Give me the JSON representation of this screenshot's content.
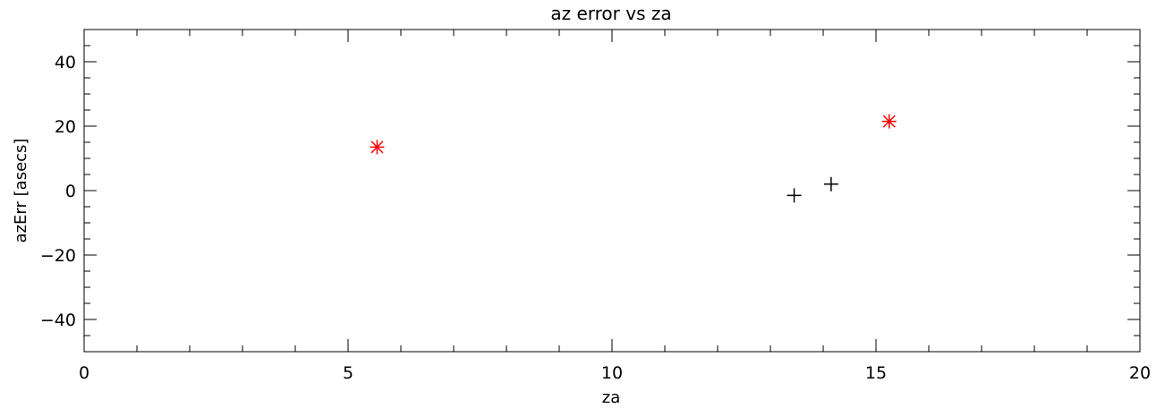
{
  "chart_data": {
    "type": "scatter",
    "title": "az error vs za",
    "xlabel": "za",
    "ylabel": "azErr [asecs]",
    "xlim": [
      0,
      20
    ],
    "ylim": [
      -50,
      50
    ],
    "x_ticks": [
      0,
      5,
      10,
      15,
      20
    ],
    "x_tick_labels": [
      "0",
      "5",
      "10",
      "15",
      "20"
    ],
    "x_minor_step": 1,
    "y_ticks": [
      -40,
      -20,
      0,
      20,
      40
    ],
    "y_tick_labels": [
      "−40",
      "−20",
      "0",
      "20",
      "40"
    ],
    "y_minor_step": 5,
    "grid": false,
    "series": [
      {
        "marker": "plus",
        "color": "#000000",
        "x": [
          13.45,
          14.15
        ],
        "y": [
          -1.5,
          2.0
        ]
      },
      {
        "marker": "asterisk",
        "color": "#ff0000",
        "x": [
          5.55,
          15.25
        ],
        "y": [
          13.5,
          21.5
        ]
      }
    ]
  }
}
